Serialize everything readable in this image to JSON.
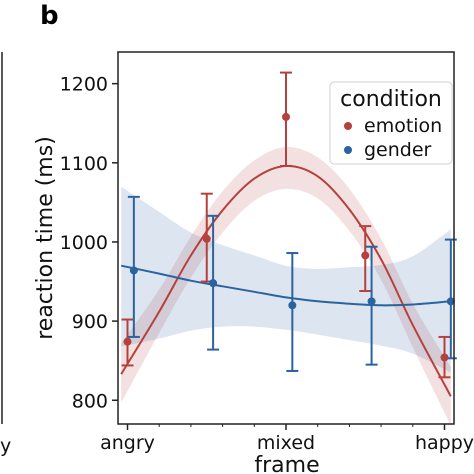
{
  "panel_letter": "b",
  "left_panel_fragment": "y",
  "colors": {
    "emotion": "#b5413e",
    "gender": "#2a63a0",
    "axis": "#222222"
  },
  "chart_data": {
    "type": "scatter",
    "title": "",
    "xlabel": "frame",
    "ylabel": "reaction time (ms)",
    "ylim": [
      770,
      1240
    ],
    "xlim": [
      -0.3,
      10.3
    ],
    "yticks": [
      800,
      900,
      1000,
      1100,
      1200
    ],
    "xticks": [
      {
        "x": 0,
        "label": "angry"
      },
      {
        "x": 5,
        "label": "mixed"
      },
      {
        "x": 10,
        "label": "happy"
      }
    ],
    "minor_xticks": [
      1,
      2,
      3,
      4,
      6,
      7,
      8,
      9
    ],
    "grid": false,
    "legend": {
      "title": "condition",
      "placement": "top-right"
    },
    "series": [
      {
        "name": "emotion",
        "color": "#b5413e",
        "points": [
          {
            "x": 0,
            "y": 874,
            "lo": 844,
            "hi": 902
          },
          {
            "x": 2.5,
            "y": 1004,
            "lo": 950,
            "hi": 1061
          },
          {
            "x": 5,
            "y": 1158,
            "lo": 1096,
            "hi": 1214
          },
          {
            "x": 7.5,
            "y": 983,
            "lo": 938,
            "hi": 1020
          },
          {
            "x": 10,
            "y": 854,
            "lo": 829,
            "hi": 880
          }
        ],
        "fit": [
          {
            "x": -0.2,
            "y": 833,
            "lo": 797,
            "hi": 872
          },
          {
            "x": 1,
            "y": 912,
            "lo": 885,
            "hi": 940
          },
          {
            "x": 2,
            "y": 983,
            "lo": 955,
            "hi": 1007
          },
          {
            "x": 3,
            "y": 1040,
            "lo": 1012,
            "hi": 1064
          },
          {
            "x": 4,
            "y": 1080,
            "lo": 1052,
            "hi": 1103
          },
          {
            "x": 5,
            "y": 1096,
            "lo": 1067,
            "hi": 1120
          },
          {
            "x": 6,
            "y": 1083,
            "lo": 1055,
            "hi": 1107
          },
          {
            "x": 7,
            "y": 1041,
            "lo": 1014,
            "hi": 1067
          },
          {
            "x": 8,
            "y": 978,
            "lo": 952,
            "hi": 1004
          },
          {
            "x": 9,
            "y": 895,
            "lo": 867,
            "hi": 922
          },
          {
            "x": 10.2,
            "y": 805,
            "lo": 768,
            "hi": 842
          }
        ]
      },
      {
        "name": "gender",
        "color": "#2a63a0",
        "points": [
          {
            "x": 0.2,
            "y": 964,
            "lo": 880,
            "hi": 1057
          },
          {
            "x": 2.7,
            "y": 948,
            "lo": 864,
            "hi": 1033
          },
          {
            "x": 5.2,
            "y": 920,
            "lo": 837,
            "hi": 986
          },
          {
            "x": 7.7,
            "y": 925,
            "lo": 845,
            "hi": 994
          },
          {
            "x": 10.2,
            "y": 925,
            "lo": 853,
            "hi": 1003
          }
        ],
        "fit": [
          {
            "x": -0.2,
            "y": 970,
            "lo": 868,
            "hi": 1070
          },
          {
            "x": 1,
            "y": 960,
            "lo": 878,
            "hi": 1038
          },
          {
            "x": 2,
            "y": 951,
            "lo": 888,
            "hi": 1012
          },
          {
            "x": 3,
            "y": 944,
            "lo": 893,
            "hi": 996
          },
          {
            "x": 4,
            "y": 937,
            "lo": 893,
            "hi": 983
          },
          {
            "x": 5,
            "y": 930,
            "lo": 889,
            "hi": 970
          },
          {
            "x": 6,
            "y": 925,
            "lo": 883,
            "hi": 966
          },
          {
            "x": 7,
            "y": 922,
            "lo": 876,
            "hi": 968
          },
          {
            "x": 8,
            "y": 920,
            "lo": 869,
            "hi": 971
          },
          {
            "x": 9,
            "y": 921,
            "lo": 859,
            "hi": 982
          },
          {
            "x": 10.2,
            "y": 925,
            "lo": 835,
            "hi": 1016
          }
        ]
      }
    ]
  }
}
